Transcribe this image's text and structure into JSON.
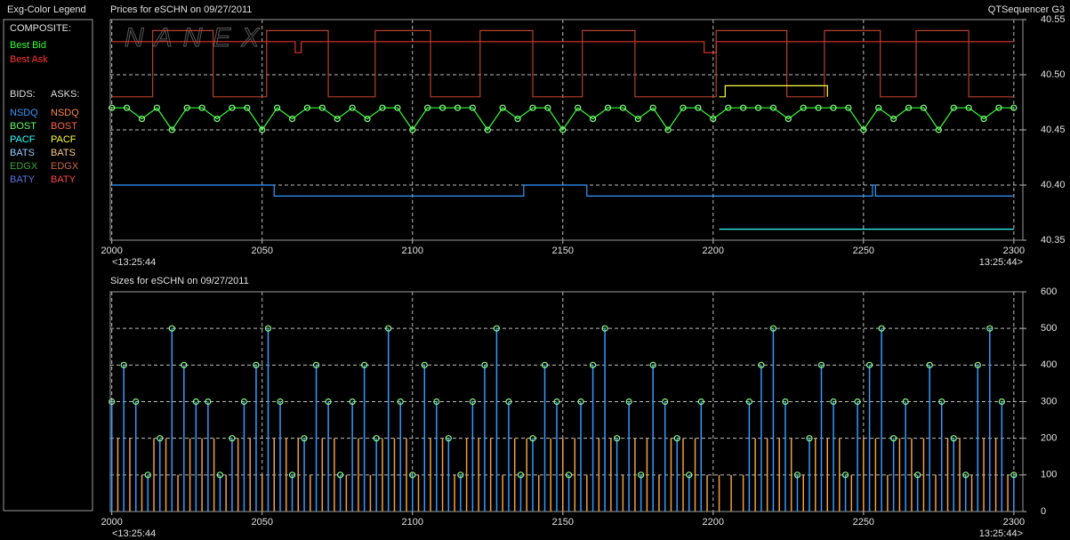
{
  "legend": {
    "title": "Exg-Color Legend",
    "composite_label": "COMPOSITE:",
    "composite": [
      {
        "name": "Best Bid",
        "color": "#33ff33"
      },
      {
        "name": "Best Ask",
        "color": "#ff3333"
      }
    ],
    "bids_label": "BIDS:",
    "asks_label": "ASKS:",
    "bids": [
      {
        "name": "NSDQ",
        "color": "#3399ff"
      },
      {
        "name": "BOST",
        "color": "#66ff66"
      },
      {
        "name": "PACF",
        "color": "#33ffff"
      },
      {
        "name": "BATS",
        "color": "#99ccff"
      },
      {
        "name": "EDGX",
        "color": "#33aa33"
      },
      {
        "name": "BATY",
        "color": "#5577dd"
      }
    ],
    "asks": [
      {
        "name": "NSDQ",
        "color": "#ff8844"
      },
      {
        "name": "BOST",
        "color": "#ff6644"
      },
      {
        "name": "PACF",
        "color": "#ffff44"
      },
      {
        "name": "BATS",
        "color": "#ffcc88"
      },
      {
        "name": "EDGX",
        "color": "#cc6644"
      },
      {
        "name": "BATY",
        "color": "#ff4444"
      }
    ]
  },
  "header_right": "QTSequencer G3",
  "watermark": "NANEX",
  "chart_data": [
    {
      "type": "line",
      "title": "Prices for  eSCHN  on  09/27/2011",
      "xlim": [
        1999.5,
        2303
      ],
      "xticks": [
        2000,
        2050,
        2100,
        2150,
        2200,
        2250,
        2300
      ],
      "x_start_label": "<13:25:44",
      "x_end_label": "13:25:44>",
      "ylim": [
        40.35,
        40.55
      ],
      "yticks": [
        40.35,
        {
          "value": 40.4,
          "label": "40.40"
        },
        40.45,
        {
          "value": 40.5,
          "label": "40.50"
        },
        40.55
      ],
      "grid": true,
      "series": [
        {
          "color": "#b8402e",
          "markers": false,
          "x": [
            2000,
            2013.6,
            2013.6,
            2033.7,
            2033.7,
            2051.5,
            2051.5,
            2072,
            2072,
            2087.6,
            2087.6,
            2106,
            2106,
            2122.5,
            2122.5,
            2140,
            2140,
            2156.5,
            2156.5,
            2174,
            2174,
            2201,
            2201,
            2224.5,
            2224.5,
            2237,
            2237,
            2255.6,
            2255.6,
            2267.5,
            2267.5,
            2285,
            2285,
            2300
          ],
          "values": [
            40.48,
            40.48,
            40.54,
            40.54,
            40.48,
            40.48,
            40.54,
            40.54,
            40.48,
            40.48,
            40.54,
            40.54,
            40.48,
            40.48,
            40.54,
            40.54,
            40.48,
            40.48,
            40.54,
            40.54,
            40.48,
            40.48,
            40.54,
            40.54,
            40.48,
            40.48,
            40.54,
            40.54,
            40.48,
            40.48,
            40.54,
            40.54,
            40.48,
            40.48
          ]
        },
        {
          "color": "#dd3333",
          "markers": false,
          "x": [
            2000,
            2061,
            2061,
            2063,
            2063,
            2197,
            2197,
            2201,
            2201,
            2300
          ],
          "values": [
            40.53,
            40.53,
            40.52,
            40.52,
            40.53,
            40.53,
            40.52,
            40.52,
            40.53,
            40.53
          ]
        },
        {
          "color": "#ffff44",
          "markers": false,
          "x": [
            2202,
            2204,
            2204,
            2238,
            2238
          ],
          "values": [
            40.48,
            40.48,
            40.49,
            40.49,
            40.48
          ]
        },
        {
          "color": "#3399ff",
          "markers": false,
          "x": [
            2000,
            2054,
            2054,
            2137,
            2137,
            2158,
            2158,
            2253,
            2253,
            2254,
            2254,
            2300
          ],
          "values": [
            40.4,
            40.4,
            40.39,
            40.39,
            40.4,
            40.4,
            40.39,
            40.39,
            40.4,
            40.4,
            40.39,
            40.39
          ]
        },
        {
          "color": "#33ffff",
          "markers": false,
          "x": [
            2202,
            2300
          ],
          "values": [
            40.36,
            40.36
          ]
        },
        {
          "color": "#33ff33",
          "markers": true,
          "marker_color": "#88ff88",
          "x": [
            2000,
            2005,
            2010,
            2015,
            2020,
            2025,
            2030,
            2035,
            2040,
            2045,
            2050,
            2055,
            2060,
            2065,
            2070,
            2075,
            2080,
            2085,
            2090,
            2095,
            2100,
            2105,
            2110,
            2115,
            2120,
            2125,
            2130,
            2135,
            2140,
            2145,
            2150,
            2155,
            2160,
            2165,
            2170,
            2175,
            2180,
            2185,
            2190,
            2195,
            2200,
            2205,
            2210,
            2215,
            2220,
            2225,
            2230,
            2235,
            2240,
            2245,
            2250,
            2255,
            2260,
            2265,
            2270,
            2275,
            2280,
            2285,
            2290,
            2295,
            2300
          ],
          "values": [
            40.47,
            40.47,
            40.46,
            40.47,
            40.45,
            40.47,
            40.47,
            40.46,
            40.47,
            40.47,
            40.45,
            40.47,
            40.46,
            40.47,
            40.47,
            40.46,
            40.47,
            40.46,
            40.47,
            40.47,
            40.45,
            40.47,
            40.47,
            40.47,
            40.47,
            40.45,
            40.47,
            40.46,
            40.47,
            40.47,
            40.45,
            40.47,
            40.46,
            40.47,
            40.47,
            40.46,
            40.47,
            40.45,
            40.47,
            40.47,
            40.46,
            40.47,
            40.47,
            40.47,
            40.47,
            40.46,
            40.47,
            40.47,
            40.47,
            40.47,
            40.45,
            40.47,
            40.46,
            40.47,
            40.47,
            40.45,
            40.47,
            40.47,
            40.46,
            40.47,
            40.47
          ]
        }
      ]
    },
    {
      "type": "stem",
      "title": "Sizes for  eSCHN  on  09/27/2011",
      "xlim": [
        1999.5,
        2303
      ],
      "xticks": [
        2000,
        2050,
        2100,
        2150,
        2200,
        2250,
        2300
      ],
      "x_start_label": "<13:25:44",
      "x_end_label": "13:25:44>",
      "ylim": [
        0,
        600
      ],
      "yticks": [
        0,
        100,
        200,
        300,
        400,
        500,
        600
      ],
      "grid": true,
      "series": [
        {
          "color": "#f0a040",
          "markers": false,
          "x": [
            2002,
            2006,
            2010,
            2014,
            2018,
            2022,
            2026,
            2030,
            2034,
            2038,
            2042,
            2046,
            2050,
            2054,
            2058,
            2062,
            2066,
            2070,
            2074,
            2078,
            2082,
            2086,
            2090,
            2094,
            2098,
            2102,
            2106,
            2110,
            2114,
            2118,
            2122,
            2126,
            2130,
            2134,
            2138,
            2142,
            2146,
            2150,
            2154,
            2158,
            2162,
            2166,
            2170,
            2174,
            2178,
            2182,
            2186,
            2190,
            2194,
            2198,
            2202,
            2206,
            2210,
            2214,
            2218,
            2222,
            2226,
            2230,
            2234,
            2238,
            2242,
            2246,
            2250,
            2254,
            2258,
            2262,
            2266,
            2270,
            2274,
            2278,
            2282,
            2286,
            2290,
            2294,
            2298
          ],
          "values": [
            200,
            200,
            100,
            200,
            200,
            100,
            200,
            200,
            200,
            100,
            200,
            200,
            100,
            200,
            200,
            200,
            100,
            200,
            200,
            100,
            200,
            100,
            200,
            200,
            200,
            100,
            200,
            200,
            100,
            200,
            200,
            200,
            100,
            200,
            200,
            100,
            200,
            200,
            200,
            100,
            200,
            200,
            100,
            200,
            200,
            100,
            200,
            200,
            200,
            100,
            100,
            100,
            100,
            200,
            200,
            200,
            200,
            100,
            200,
            200,
            200,
            100,
            200,
            200,
            100,
            200,
            200,
            200,
            100,
            200,
            200,
            100,
            200,
            200,
            100
          ]
        },
        {
          "color": "#3399ff",
          "markers": true,
          "marker_color": "#88ff88",
          "x": [
            2000,
            2004,
            2008,
            2012,
            2016,
            2020,
            2024,
            2028,
            2032,
            2036,
            2040,
            2044,
            2048,
            2052,
            2056,
            2060,
            2064,
            2068,
            2072,
            2076,
            2080,
            2084,
            2088,
            2092,
            2096,
            2100,
            2104,
            2108,
            2112,
            2116,
            2120,
            2124,
            2128,
            2132,
            2136,
            2140,
            2144,
            2148,
            2152,
            2156,
            2160,
            2164,
            2168,
            2172,
            2176,
            2180,
            2184,
            2188,
            2192,
            2196,
            2200,
            2204,
            2208,
            2212,
            2216,
            2220,
            2224,
            2228,
            2232,
            2236,
            2240,
            2244,
            2248,
            2252,
            2256,
            2260,
            2264,
            2268,
            2272,
            2276,
            2280,
            2284,
            2288,
            2292,
            2296,
            2300
          ],
          "values": [
            300,
            400,
            300,
            100,
            200,
            500,
            400,
            300,
            300,
            100,
            200,
            300,
            400,
            500,
            300,
            100,
            200,
            400,
            300,
            100,
            300,
            400,
            200,
            500,
            300,
            100,
            400,
            300,
            200,
            100,
            300,
            400,
            500,
            300,
            100,
            200,
            400,
            300,
            100,
            300,
            400,
            500,
            200,
            300,
            100,
            400,
            300,
            200,
            100,
            300,
            null,
            null,
            null,
            300,
            400,
            500,
            300,
            100,
            200,
            400,
            300,
            100,
            300,
            400,
            500,
            200,
            300,
            100,
            400,
            300,
            200,
            100,
            400,
            500,
            300,
            100
          ]
        }
      ]
    }
  ]
}
